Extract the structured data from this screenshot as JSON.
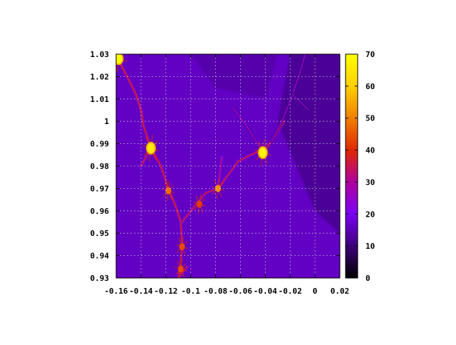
{
  "chart_data": {
    "type": "heatmap",
    "title": "",
    "xlabel": "",
    "ylabel": "",
    "xlim": [
      -0.16,
      0.02
    ],
    "ylim": [
      0.93,
      1.03
    ],
    "grid": true,
    "x_ticks": [
      {
        "value": -0.16,
        "label": "-0.16"
      },
      {
        "value": -0.14,
        "label": "-0.14"
      },
      {
        "value": -0.12,
        "label": "-0.12"
      },
      {
        "value": -0.1,
        "label": "-0.1"
      },
      {
        "value": -0.08,
        "label": "-0.08"
      },
      {
        "value": -0.06,
        "label": "-0.06"
      },
      {
        "value": -0.04,
        "label": "-0.04"
      },
      {
        "value": -0.02,
        "label": "-0.02"
      },
      {
        "value": 0,
        "label": "0"
      },
      {
        "value": 0.02,
        "label": "0.02"
      }
    ],
    "y_ticks": [
      {
        "value": 0.93,
        "label": "0.93"
      },
      {
        "value": 0.94,
        "label": "0.94"
      },
      {
        "value": 0.95,
        "label": "0.95"
      },
      {
        "value": 0.96,
        "label": "0.96"
      },
      {
        "value": 0.97,
        "label": "0.97"
      },
      {
        "value": 0.98,
        "label": "0.98"
      },
      {
        "value": 0.99,
        "label": "0.99"
      },
      {
        "value": 1,
        "label": "1"
      },
      {
        "value": 1.01,
        "label": "1.01"
      },
      {
        "value": 1.02,
        "label": "1.02"
      },
      {
        "value": 1.03,
        "label": "1.03"
      }
    ],
    "colorbar": {
      "range": [
        0,
        70
      ],
      "ticks": [
        {
          "value": 0,
          "label": "0"
        },
        {
          "value": 10,
          "label": "10"
        },
        {
          "value": 20,
          "label": "20"
        },
        {
          "value": 30,
          "label": "30"
        },
        {
          "value": 40,
          "label": "40"
        },
        {
          "value": 50,
          "label": "50"
        },
        {
          "value": 60,
          "label": "60"
        },
        {
          "value": 70,
          "label": "70"
        }
      ],
      "colormap": "black-purple-red-orange-yellow",
      "stops": [
        "#000000",
        "#3d0078",
        "#7a00f5",
        "#b000a0",
        "#e02800",
        "#f08000",
        "#ffd000",
        "#ffff00"
      ]
    },
    "background_level": 16,
    "filaments": [
      {
        "points": [
          [
            -0.159,
            1.028
          ],
          [
            -0.152,
            1.021
          ],
          [
            -0.144,
            1.012
          ],
          [
            -0.14,
            1.005
          ],
          [
            -0.138,
            0.998
          ],
          [
            -0.132,
            0.988
          ]
        ],
        "value": 40
      },
      {
        "points": [
          [
            -0.132,
            0.988
          ],
          [
            -0.124,
            0.98
          ],
          [
            -0.118,
            0.97
          ],
          [
            -0.112,
            0.962
          ],
          [
            -0.108,
            0.955
          ],
          [
            -0.107,
            0.945
          ],
          [
            -0.108,
            0.937
          ],
          [
            -0.11,
            0.93
          ]
        ],
        "value": 40
      },
      {
        "points": [
          [
            -0.132,
            0.988
          ],
          [
            -0.14,
            0.98
          ]
        ],
        "value": 38
      },
      {
        "points": [
          [
            -0.107,
            0.955
          ],
          [
            -0.097,
            0.962
          ],
          [
            -0.088,
            0.968
          ],
          [
            -0.078,
            0.97
          ],
          [
            -0.07,
            0.976
          ],
          [
            -0.062,
            0.982
          ],
          [
            -0.052,
            0.985
          ],
          [
            -0.043,
            0.987
          ],
          [
            -0.035,
            0.991
          ],
          [
            -0.025,
            1.0
          ]
        ],
        "value": 38
      },
      {
        "points": [
          [
            -0.078,
            0.97
          ],
          [
            -0.075,
            0.984
          ]
        ],
        "value": 34
      },
      {
        "points": [
          [
            -0.043,
            0.987
          ],
          [
            -0.055,
            0.998
          ],
          [
            -0.066,
            1.006
          ]
        ],
        "value": 28
      },
      {
        "points": [
          [
            -0.035,
            0.991
          ],
          [
            -0.025,
            1.002
          ],
          [
            -0.018,
            1.012
          ],
          [
            -0.012,
            1.022
          ],
          [
            -0.008,
            1.03
          ]
        ],
        "value": 26
      },
      {
        "points": [
          [
            -0.018,
            1.012
          ],
          [
            -0.005,
            1.005
          ]
        ],
        "value": 24
      },
      {
        "points": [
          [
            -0.11,
            0.93
          ],
          [
            -0.103,
            0.935
          ]
        ],
        "value": 38
      }
    ],
    "hotspots": [
      {
        "x": -0.158,
        "y": 1.028,
        "value": 70
      },
      {
        "x": -0.132,
        "y": 0.988,
        "value": 66
      },
      {
        "x": -0.042,
        "y": 0.986,
        "value": 68
      },
      {
        "x": -0.118,
        "y": 0.969,
        "value": 48
      },
      {
        "x": -0.078,
        "y": 0.97,
        "value": 52
      },
      {
        "x": -0.093,
        "y": 0.963,
        "value": 42
      },
      {
        "x": -0.107,
        "y": 0.944,
        "value": 44
      },
      {
        "x": -0.108,
        "y": 0.934,
        "value": 44
      }
    ]
  }
}
